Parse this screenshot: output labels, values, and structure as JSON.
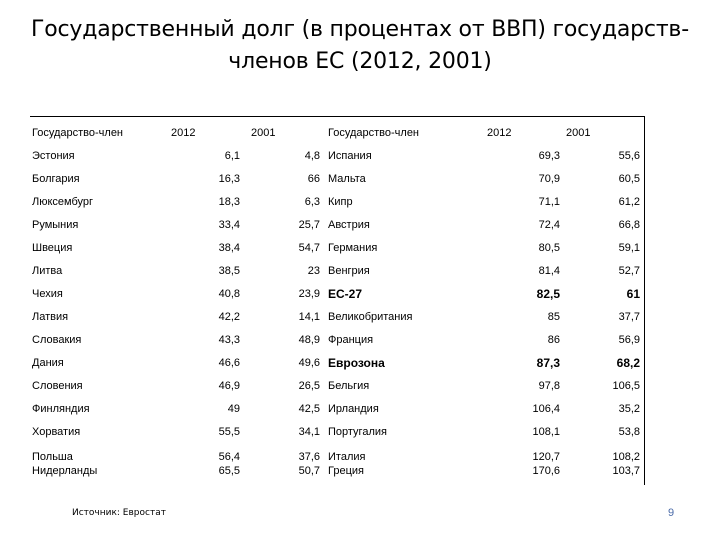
{
  "title_line1": "Государственный долг (в процентах от ВВП) государств-",
  "title_line2": "членов ЕС (2012, 2001)",
  "headers": {
    "member_left": "Государство-член",
    "y2012_left": "2012",
    "y2001_left": "2001",
    "member_right": "Государство-член",
    "y2012_right": "2012",
    "y2001_right": "2001"
  },
  "left_rows": [
    {
      "country": "Эстония",
      "v2012": "6,1",
      "v2001": "4,8"
    },
    {
      "country": "Болгария",
      "v2012": "16,3",
      "v2001": "66"
    },
    {
      "country": "Люксембург",
      "v2012": "18,3",
      "v2001": "6,3"
    },
    {
      "country": "Румыния",
      "v2012": "33,4",
      "v2001": "25,7"
    },
    {
      "country": "Швеция",
      "v2012": "38,4",
      "v2001": "54,7"
    },
    {
      "country": "Литва",
      "v2012": "38,5",
      "v2001": "23"
    },
    {
      "country": "Чехия",
      "v2012": "40,8",
      "v2001": "23,9"
    },
    {
      "country": "Латвия",
      "v2012": "42,2",
      "v2001": "14,1"
    },
    {
      "country": "Словакия",
      "v2012": "43,3",
      "v2001": "48,9"
    },
    {
      "country": "Дания",
      "v2012": "46,6",
      "v2001": "49,6"
    },
    {
      "country": "Словения",
      "v2012": "46,9",
      "v2001": "26,5"
    },
    {
      "country": "Финляндия",
      "v2012": "49",
      "v2001": "42,5"
    },
    {
      "country": "Хорватия",
      "v2012": "55,5",
      "v2001": "34,1"
    },
    {
      "country": "Польша",
      "v2012": "56,4",
      "v2001": "37,6"
    },
    {
      "country": "Нидерланды",
      "v2012": "65,5",
      "v2001": "50,7"
    }
  ],
  "right_rows": [
    {
      "country": "Испания",
      "v2012": "69,3",
      "v2001": "55,6",
      "bold": false
    },
    {
      "country": "Мальта",
      "v2012": "70,9",
      "v2001": "60,5",
      "bold": false
    },
    {
      "country": "Кипр",
      "v2012": "71,1",
      "v2001": "61,2",
      "bold": false
    },
    {
      "country": "Австрия",
      "v2012": "72,4",
      "v2001": "66,8",
      "bold": false
    },
    {
      "country": "Германия",
      "v2012": "80,5",
      "v2001": "59,1",
      "bold": false
    },
    {
      "country": "Венгрия",
      "v2012": "81,4",
      "v2001": "52,7",
      "bold": false
    },
    {
      "country": "ЕС-27",
      "v2012": "82,5",
      "v2001": "61",
      "bold": true
    },
    {
      "country": "Великобритания",
      "v2012": "85",
      "v2001": "37,7",
      "bold": false
    },
    {
      "country": "Франция",
      "v2012": "86",
      "v2001": "56,9",
      "bold": false
    },
    {
      "country": "Еврозона",
      "v2012": "87,3",
      "v2001": "68,2",
      "bold": true
    },
    {
      "country": "Бельгия",
      "v2012": "97,8",
      "v2001": "106,5",
      "bold": false
    },
    {
      "country": "Ирландия",
      "v2012": "106,4",
      "v2001": "35,2",
      "bold": false
    },
    {
      "country": "Португалия",
      "v2012": "108,1",
      "v2001": "53,8",
      "bold": false
    },
    {
      "country": "Италия",
      "v2012": "120,7",
      "v2001": "108,2",
      "bold": false
    },
    {
      "country": "Греция",
      "v2012": "170,6",
      "v2001": "103,7",
      "bold": false
    }
  ],
  "source": "Источник: Евростат",
  "page_number": "9"
}
